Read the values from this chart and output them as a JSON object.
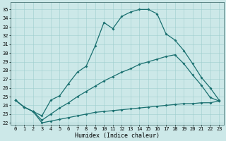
{
  "title": "",
  "xlabel": "Humidex (Indice chaleur)",
  "bg_color": "#cce8e8",
  "grid_color": "#9ecece",
  "line_color": "#1a7070",
  "xlim": [
    -0.5,
    23.5
  ],
  "ylim": [
    21.8,
    35.8
  ],
  "xticks": [
    0,
    1,
    2,
    3,
    4,
    5,
    6,
    7,
    8,
    9,
    10,
    11,
    12,
    13,
    14,
    15,
    16,
    17,
    18,
    19,
    20,
    21,
    22,
    23
  ],
  "yticks": [
    22,
    23,
    24,
    25,
    26,
    27,
    28,
    29,
    30,
    31,
    32,
    33,
    34,
    35
  ],
  "curve1_x": [
    0,
    1,
    2,
    3,
    4,
    5,
    6,
    7,
    8,
    9,
    10,
    11,
    12,
    13,
    14,
    15,
    16,
    17,
    18,
    19,
    20,
    21,
    22,
    23
  ],
  "curve1_y": [
    24.6,
    23.8,
    23.3,
    22.8,
    24.6,
    25.1,
    26.5,
    27.8,
    28.5,
    30.8,
    33.5,
    32.8,
    34.2,
    34.7,
    35.0,
    35.0,
    34.5,
    32.2,
    31.5,
    30.3,
    28.8,
    27.2,
    26.0,
    24.6
  ],
  "curve2_x": [
    0,
    1,
    2,
    3,
    4,
    5,
    6,
    7,
    8,
    9,
    10,
    11,
    12,
    13,
    14,
    15,
    16,
    17,
    18,
    19,
    20,
    21,
    22,
    23
  ],
  "curve2_y": [
    24.6,
    23.8,
    23.3,
    22.3,
    23.0,
    23.7,
    24.3,
    25.0,
    25.6,
    26.2,
    26.8,
    27.3,
    27.8,
    28.2,
    28.7,
    29.0,
    29.3,
    29.6,
    29.8,
    28.8,
    27.5,
    26.3,
    24.9,
    24.5
  ],
  "curve3_x": [
    0,
    1,
    2,
    3,
    4,
    5,
    6,
    7,
    8,
    9,
    10,
    11,
    12,
    13,
    14,
    15,
    16,
    17,
    18,
    19,
    20,
    21,
    22,
    23
  ],
  "curve3_y": [
    24.6,
    23.8,
    23.3,
    22.0,
    22.2,
    22.4,
    22.6,
    22.8,
    23.0,
    23.2,
    23.3,
    23.4,
    23.5,
    23.6,
    23.7,
    23.8,
    23.9,
    24.0,
    24.1,
    24.2,
    24.2,
    24.3,
    24.3,
    24.5
  ],
  "marker_size": 2.0,
  "line_width": 0.9,
  "tick_fontsize": 5.0,
  "xlabel_fontsize": 6.0
}
